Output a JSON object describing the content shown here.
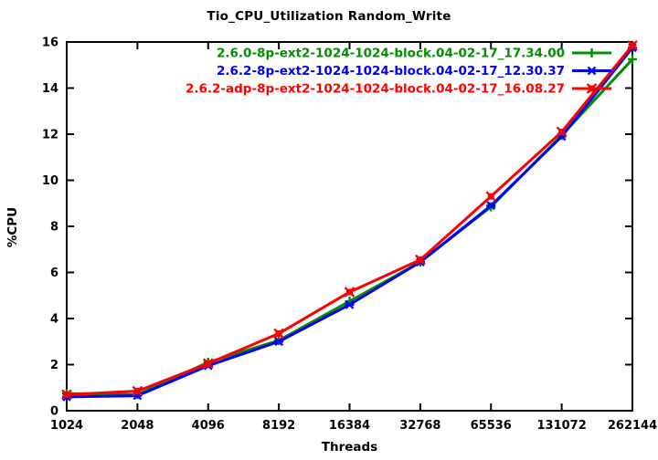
{
  "title": "Tio_CPU_Utilization Random_Write",
  "chart_data": {
    "type": "line",
    "title": "Tio_CPU_Utilization Random_Write",
    "xlabel": "Threads",
    "ylabel": "%CPU",
    "x_scale": "log2-categorical",
    "categories": [
      "1024",
      "2048",
      "4096",
      "8192",
      "16384",
      "32768",
      "65536",
      "131072",
      "262144"
    ],
    "ylim": [
      0,
      16
    ],
    "y_tick_step": 2,
    "y_tick_labels": [
      "0",
      "2",
      "4",
      "6",
      "8",
      "10",
      "12",
      "14",
      "16"
    ],
    "grid": false,
    "legend_position": "top-right-inside",
    "axis_color": "#000000",
    "series": [
      {
        "name": "2.6.0-8p-ext2-1024-1024-block.04-02-17_17.34.00",
        "color": "#009000",
        "marker": "plus",
        "values": [
          0.75,
          0.7,
          2.1,
          3.05,
          4.75,
          6.45,
          8.85,
          11.95,
          15.25
        ]
      },
      {
        "name": "2.6.2-8p-ext2-1024-1024-block.04-02-17_12.30.37",
        "color": "#0000ff",
        "marker": "asterisk",
        "values": [
          0.6,
          0.65,
          1.95,
          3.0,
          4.6,
          6.45,
          8.9,
          11.9,
          15.75
        ]
      },
      {
        "name": "2.6.2-adp-8p-ext2-1024-1024-block.04-02-17_16.08.27",
        "color": "#ff0000",
        "marker": "filled-square-x",
        "values": [
          0.7,
          0.85,
          2.05,
          3.35,
          5.15,
          6.55,
          9.3,
          12.1,
          15.85
        ]
      }
    ]
  }
}
